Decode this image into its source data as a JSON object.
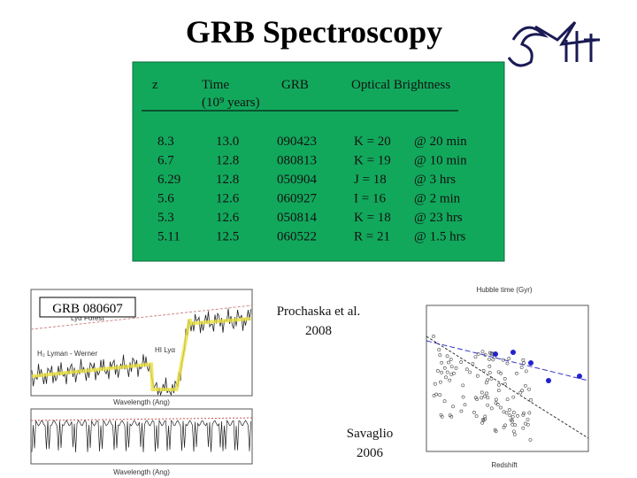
{
  "title": "GRB Spectroscopy",
  "table": {
    "headers": {
      "z": "z",
      "time": "Time",
      "time_unit": "(10⁹ years)",
      "grb": "GRB",
      "brightness": "Optical Brightness"
    },
    "rows": [
      [
        "8.3",
        "13.0",
        "090423",
        "K = 20",
        "@  20 min"
      ],
      [
        "6.7",
        "12.8",
        "080813",
        "K = 19",
        "@  10 min"
      ],
      [
        "6.29",
        "12.8",
        "050904",
        "J =  18",
        "@  3 hrs"
      ],
      [
        "5.6",
        "12.6",
        "060927",
        "I  =  16",
        "@  2 min"
      ],
      [
        "5.3",
        "12.6",
        "050814",
        "K =  18",
        "@  23 hrs"
      ],
      [
        "5.11",
        "12.5",
        "060522",
        "R =  21",
        "@  1.5 hrs"
      ]
    ]
  },
  "spectrum": {
    "label": "GRB 080607",
    "annotations": [
      "Lyα Forest",
      "H₂ Lyman - Werner",
      "HI Lyα"
    ],
    "x_label": "Wavelength (Ang)"
  },
  "scatter": {
    "top_label": "Hubble time (Gyr)",
    "x_label": "Redshift"
  },
  "credits": {
    "prochaska": [
      "Prochaska et al.",
      "2008"
    ],
    "savaglio": [
      "Savaglio",
      "2006"
    ]
  }
}
